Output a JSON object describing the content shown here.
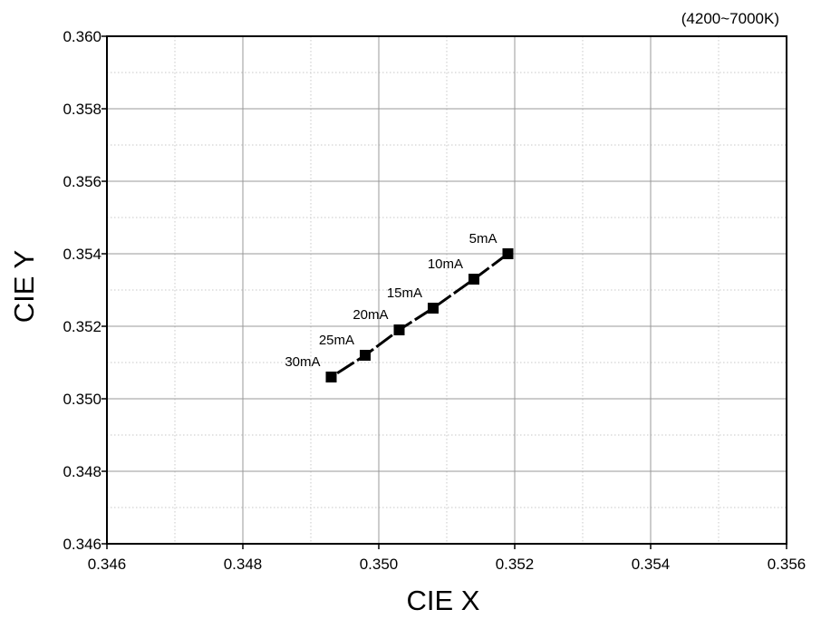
{
  "chart_data": {
    "type": "line",
    "subtitle": "(4200~7000K)",
    "xlabel": "CIE X",
    "ylabel": "CIE Y",
    "xlim": [
      0.346,
      0.356
    ],
    "ylim": [
      0.346,
      0.36
    ],
    "x_ticks": [
      "0.346",
      "0.348",
      "0.350",
      "0.352",
      "0.354",
      "0.356"
    ],
    "y_ticks": [
      "0.346",
      "0.348",
      "0.350",
      "0.352",
      "0.354",
      "0.356",
      "0.358",
      "0.360"
    ],
    "grid": true,
    "minor_grid": true,
    "line_color": "#000000",
    "series": [
      {
        "points": [
          {
            "label": "5mA",
            "x": 0.3519,
            "y": 0.354
          },
          {
            "label": "10mA",
            "x": 0.3514,
            "y": 0.3533
          },
          {
            "label": "15mA",
            "x": 0.3508,
            "y": 0.3525
          },
          {
            "label": "20mA",
            "x": 0.3503,
            "y": 0.3519
          },
          {
            "label": "25mA",
            "x": 0.3498,
            "y": 0.3512
          },
          {
            "label": "30mA",
            "x": 0.3493,
            "y": 0.3506
          }
        ]
      }
    ]
  }
}
